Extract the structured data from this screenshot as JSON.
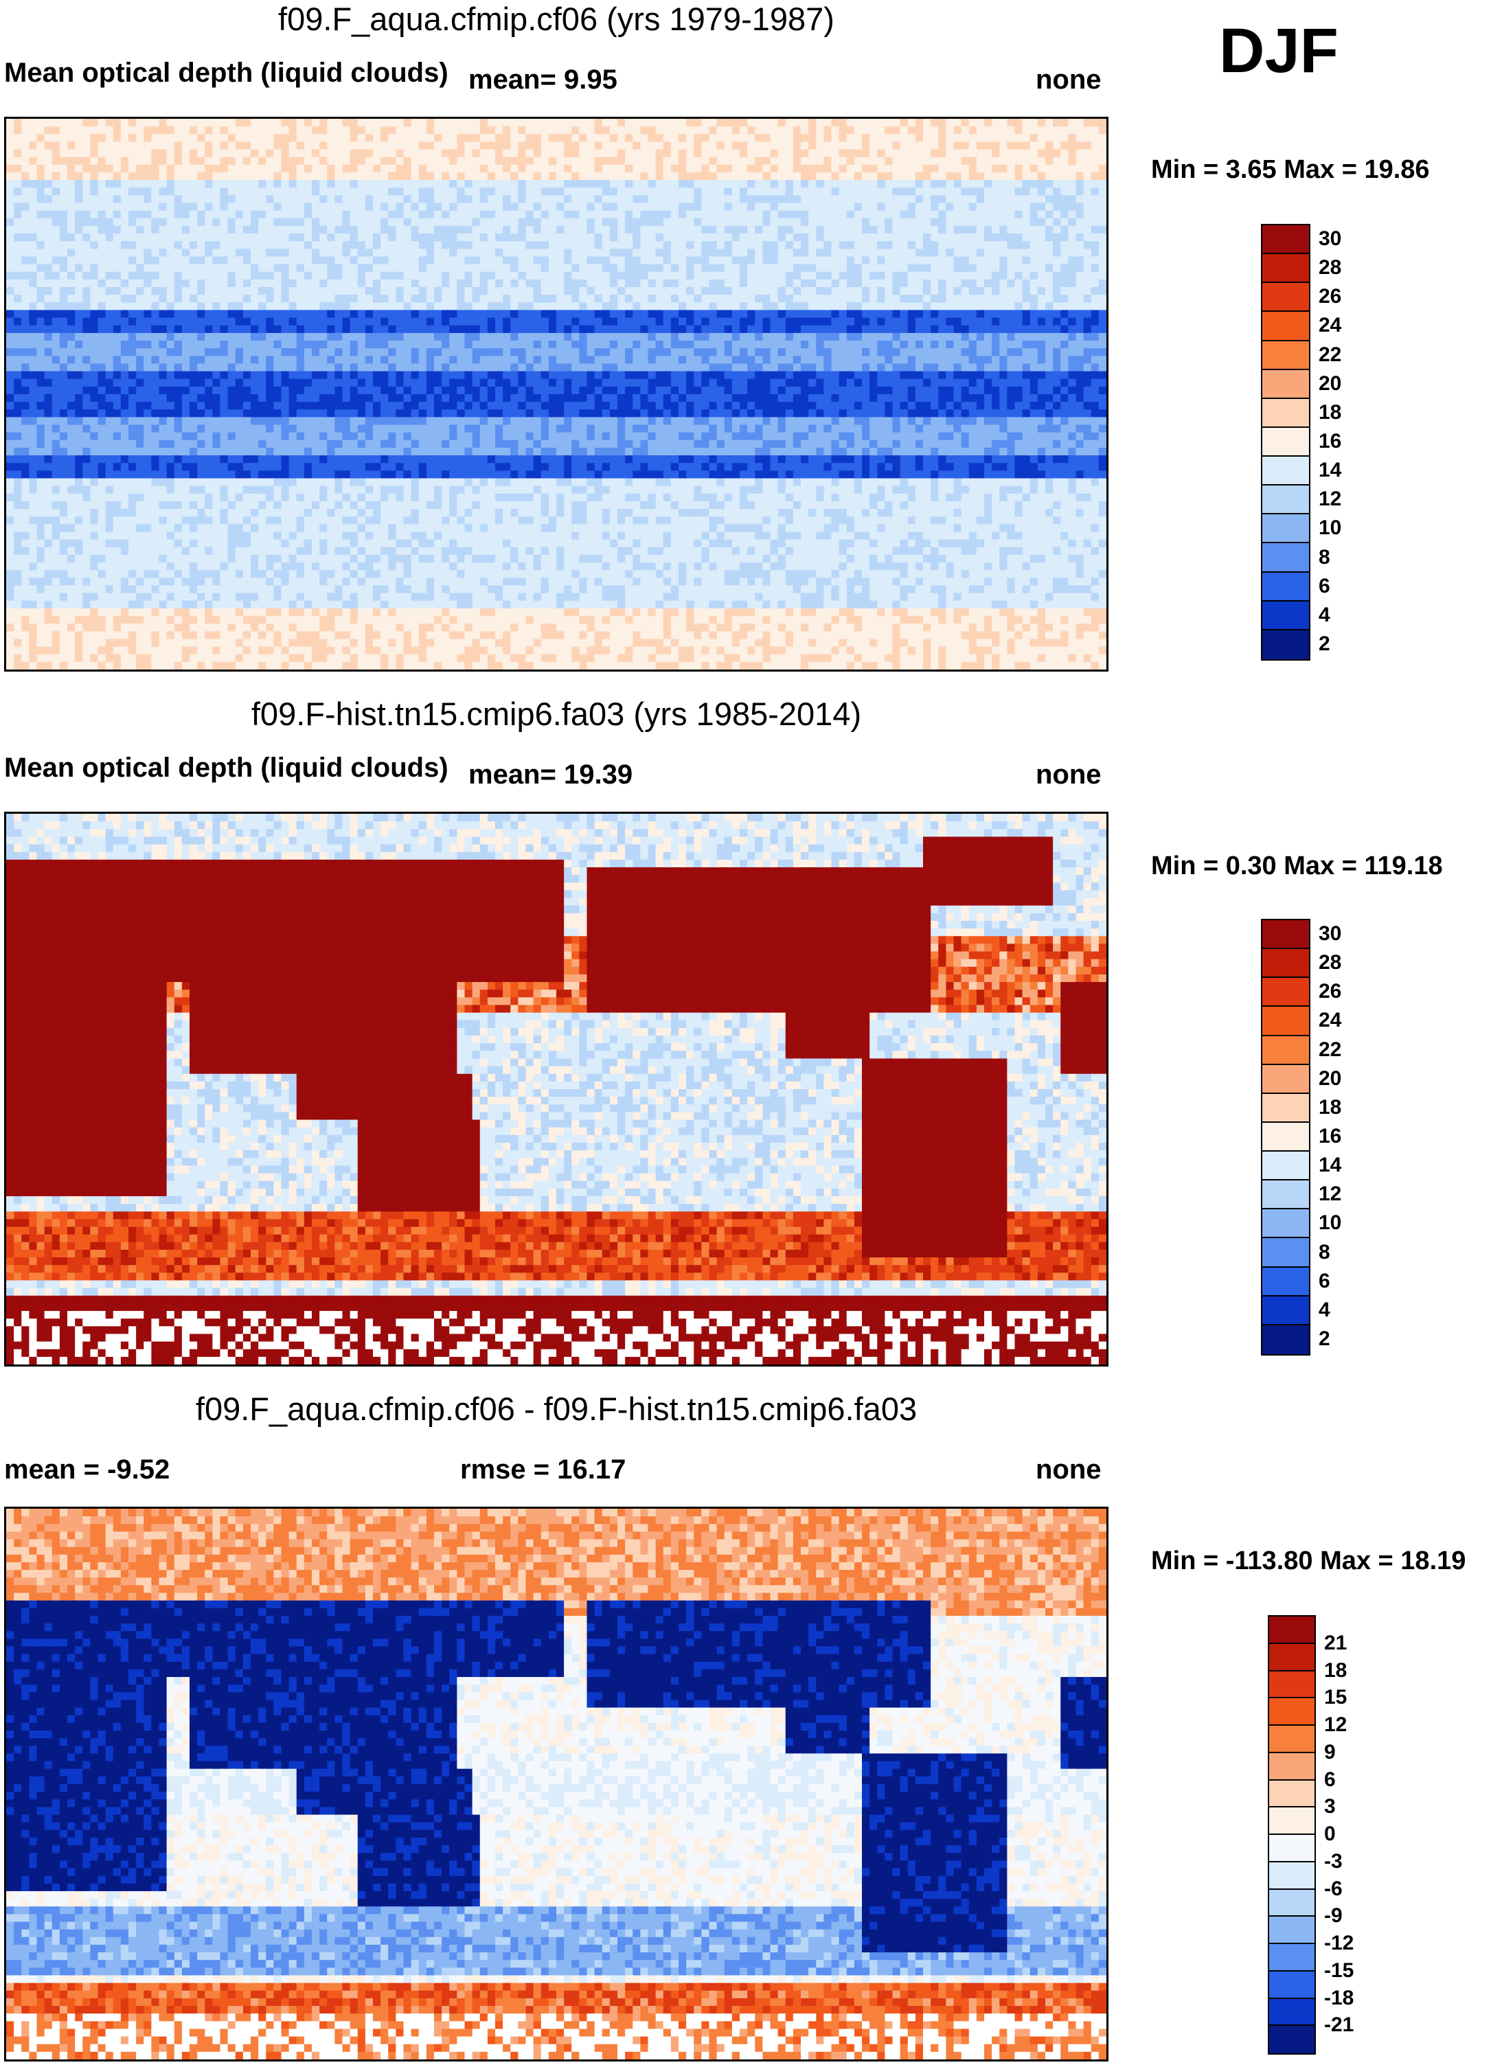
{
  "season": "DJF",
  "panels": [
    {
      "title": "f09.F_aqua.cfmip.cf06 (yrs 1979-1987)",
      "left": "Mean optical depth (liquid clouds)",
      "middle": "mean=   9.95",
      "right": "none",
      "minmax": "Min =   3.65 Max =  19.86",
      "levels": [
        "30",
        "28",
        "26",
        "24",
        "22",
        "20",
        "18",
        "16",
        "14",
        "12",
        "10",
        "8",
        "6",
        "4",
        "2"
      ],
      "level_colors": [
        "#9b0b0b",
        "#bf1d07",
        "#df3a12",
        "#f25a1c",
        "#f7803c",
        "#f9a77a",
        "#fdd3b6",
        "#fdf0e4",
        "#dbecfb",
        "#b8d6f8",
        "#8ab6f3",
        "#5b8ff0",
        "#2a62e8",
        "#0c38c9",
        "#061a86"
      ],
      "field": "aqua"
    },
    {
      "title": "f09.F-hist.tn15.cmip6.fa03 (yrs 1985-2014)",
      "left": "Mean optical depth (liquid clouds)",
      "middle": "mean=  19.39",
      "right": "none",
      "minmax": "Min =   0.30 Max = 119.18",
      "levels": [
        "30",
        "28",
        "26",
        "24",
        "22",
        "20",
        "18",
        "16",
        "14",
        "12",
        "10",
        "8",
        "6",
        "4",
        "2"
      ],
      "level_colors": [
        "#9b0b0b",
        "#bf1d07",
        "#df3a12",
        "#f25a1c",
        "#f7803c",
        "#f9a77a",
        "#fdd3b6",
        "#fdf0e4",
        "#dbecfb",
        "#b8d6f8",
        "#8ab6f3",
        "#5b8ff0",
        "#2a62e8",
        "#0c38c9",
        "#061a86"
      ],
      "field": "hist"
    },
    {
      "title": "f09.F_aqua.cfmip.cf06 - f09.F-hist.tn15.cmip6.fa03",
      "left": "mean =  -9.52",
      "middle": "rmse =  16.17",
      "right": "none",
      "minmax": "Min = -113.80 Max =  18.19",
      "levels": [
        "21",
        "18",
        "15",
        "12",
        "9",
        "6",
        "3",
        "0",
        "-3",
        "-6",
        "-9",
        "-12",
        "-15",
        "-18",
        "-21"
      ],
      "level_colors": [
        "#9b0b0b",
        "#bf1d07",
        "#df3a12",
        "#f25a1c",
        "#f7803c",
        "#f9a77a",
        "#fdd3b6",
        "#fdf0e4",
        "#f4f8fd",
        "#dbecfb",
        "#b8d6f8",
        "#8ab6f3",
        "#5b8ff0",
        "#2a62e8",
        "#0c38c9",
        "#061a86"
      ],
      "field": "diff"
    }
  ]
}
